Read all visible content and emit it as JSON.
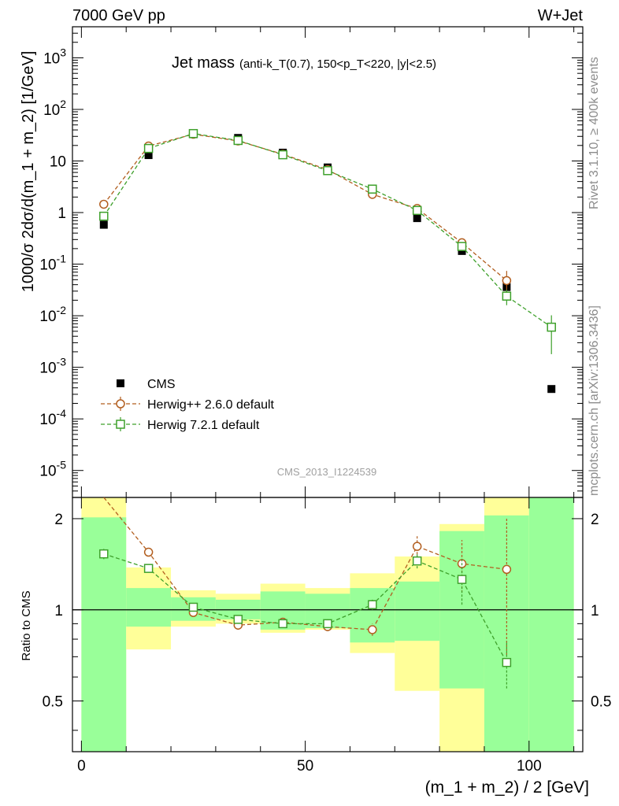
{
  "header": {
    "left": "7000 GeV pp",
    "right": "W+Jet"
  },
  "side_labels": {
    "rivet": "Rivet 3.1.10, ≥ 400k events",
    "mcplots": "mcplots.cern.ch [arXiv:1306.3436]"
  },
  "analysis_id": "CMS_2013_I1224539",
  "chart_data": [
    {
      "type": "scatter",
      "title": "Jet mass",
      "subtitle": "(anti-k_T(0.7), 150<p_T<220, |y|<2.5)",
      "xlabel": "(m_1 + m_2) / 2 [GeV]",
      "ylabel": "1000/σ 2dσ/d(m_1 + m_2) [1/GeV]",
      "y_scale": "log",
      "xlim": [
        -2,
        112
      ],
      "ylim": [
        3e-06,
        4000
      ],
      "x_ticks": [
        "0",
        "50",
        "100"
      ],
      "y_ticks": [
        "10^-5",
        "10^-4",
        "10^-3",
        "10^-2",
        "10^-1",
        "1",
        "10",
        "10^2",
        "10^3"
      ],
      "legend_position": "bottom-left",
      "series": [
        {
          "name": "CMS",
          "color": "#000000",
          "marker": "filled-square",
          "x": [
            5,
            15,
            25,
            35,
            45,
            55,
            65,
            75,
            85,
            95,
            105
          ],
          "y": [
            0.58,
            13,
            33,
            28,
            14.5,
            7.5,
            2.9,
            0.78,
            0.18,
            0.036,
            0.00038
          ]
        },
        {
          "name": "Herwig++ 2.6.0 default",
          "color": "#b25e1f",
          "marker": "open-circle",
          "line": "dashed",
          "x": [
            5,
            15,
            25,
            35,
            45,
            55,
            65,
            75,
            85,
            95
          ],
          "y": [
            1.45,
            19.5,
            33,
            24.5,
            13.5,
            6.8,
            2.25,
            1.2,
            0.26,
            0.048
          ],
          "err": [
            0.15,
            1.0,
            1.2,
            0.8,
            0.5,
            0.3,
            0.15,
            0.1,
            0.03,
            0.026
          ]
        },
        {
          "name": "Herwig 7.2.1 default",
          "color": "#3ea02b",
          "marker": "open-square",
          "line": "dashed",
          "x": [
            5,
            15,
            25,
            35,
            45,
            55,
            65,
            75,
            85,
            95,
            105
          ],
          "y": [
            0.85,
            17.5,
            34,
            25,
            13.2,
            6.5,
            2.85,
            1.1,
            0.22,
            0.024,
            0.006
          ],
          "err": [
            0.1,
            0.9,
            1.2,
            0.8,
            0.5,
            0.3,
            0.2,
            0.1,
            0.025,
            0.008,
            0.0042
          ]
        }
      ]
    },
    {
      "type": "scatter",
      "title": "",
      "xlabel": "(m_1 + m_2) / 2 [GeV]",
      "ylabel": "Ratio to CMS",
      "y_scale": "log",
      "xlim": [
        -2,
        112
      ],
      "ylim": [
        0.34,
        2.35
      ],
      "y_ticks": [
        "0.5",
        "1",
        "2"
      ],
      "bands": {
        "x_edges": [
          0,
          10,
          20,
          30,
          40,
          50,
          60,
          70,
          80,
          90,
          100,
          110
        ],
        "stat_color": "#99ff99",
        "total_color": "#ffff99",
        "stat": [
          [
            0.34,
            2.02
          ],
          [
            0.88,
            1.18
          ],
          [
            0.92,
            1.1
          ],
          [
            0.93,
            1.08
          ],
          [
            0.86,
            1.15
          ],
          [
            0.87,
            1.13
          ],
          [
            0.78,
            1.18
          ],
          [
            0.79,
            1.24
          ],
          [
            0.55,
            1.82
          ],
          [
            0.34,
            2.05
          ],
          [
            0.34,
            2.35
          ]
        ],
        "total": [
          [
            0.34,
            2.35
          ],
          [
            0.74,
            1.38
          ],
          [
            0.88,
            1.16
          ],
          [
            0.9,
            1.13
          ],
          [
            0.84,
            1.22
          ],
          [
            0.86,
            1.18
          ],
          [
            0.72,
            1.32
          ],
          [
            0.54,
            1.5
          ],
          [
            0.34,
            1.92
          ],
          [
            0.34,
            2.35
          ],
          [
            0.34,
            2.35
          ]
        ]
      },
      "series": [
        {
          "name": "Herwig++ 2.6.0 default",
          "color": "#b25e1f",
          "x": [
            5,
            15,
            25,
            35,
            45,
            55,
            65,
            75,
            85,
            95
          ],
          "y": [
            2.5,
            1.55,
            0.98,
            0.89,
            0.91,
            0.88,
            0.86,
            1.62,
            1.42,
            1.36
          ],
          "err": [
            0.08,
            0.05,
            0.03,
            0.03,
            0.03,
            0.03,
            0.04,
            0.14,
            0.28,
            0.65
          ]
        },
        {
          "name": "Herwig 7.2.1 default",
          "color": "#3ea02b",
          "x": [
            5,
            15,
            25,
            35,
            45,
            55,
            65,
            75,
            85,
            95
          ],
          "y": [
            1.53,
            1.37,
            1.02,
            0.93,
            0.9,
            0.9,
            1.04,
            1.45,
            1.26,
            0.67
          ],
          "err": [
            0.06,
            0.04,
            0.03,
            0.03,
            0.03,
            0.03,
            0.04,
            0.08,
            0.22,
            0.12
          ]
        }
      ]
    }
  ]
}
